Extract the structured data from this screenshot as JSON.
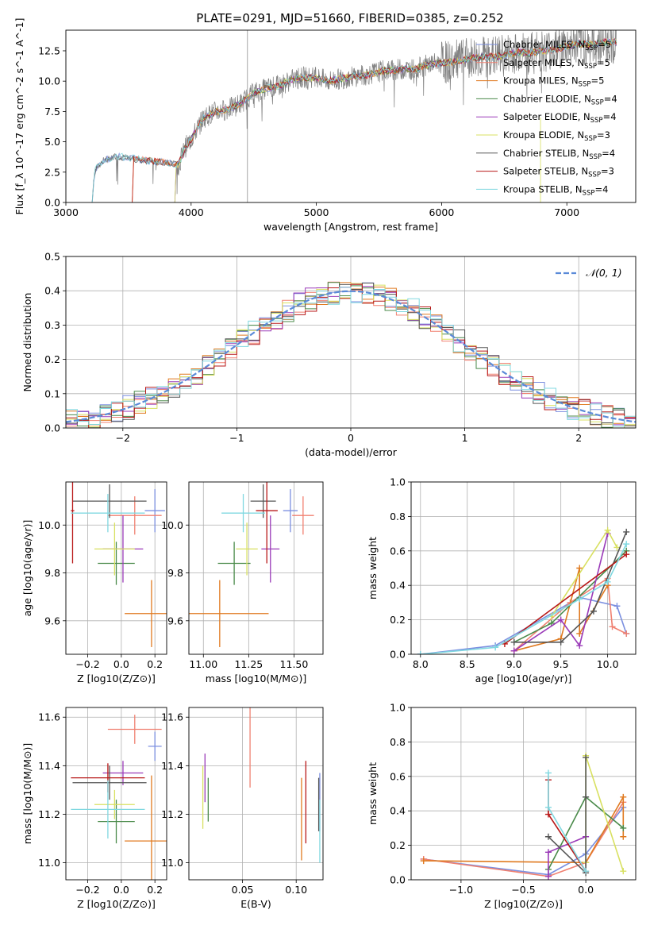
{
  "figure_title": "PLATE=0291, MJD=51660, FIBERID=0385, z=0.252",
  "series_colors": [
    "#7b8fe0",
    "#f08070",
    "#e07a20",
    "#4a8a4a",
    "#9a3ab8",
    "#d8e060",
    "#555555",
    "#b81818",
    "#80d8e0"
  ],
  "legend": [
    "Chabrier MILES, N_SSP=5",
    "Salpeter MILES, N_SSP=5",
    "Kroupa MILES, N_SSP=5",
    "Chabrier ELODIE, N_SSP=4",
    "Salpeter ELODIE, N_SSP=4",
    "Kroupa ELODIE, N_SSP=3",
    "Chabrier STELIB, N_SSP=4",
    "Salpeter STELIB, N_SSP=3",
    "Kroupa STELIB, N_SSP=4"
  ],
  "hist_legend": "𝒩(0, 1)",
  "chart_data": [
    {
      "id": "spectrum",
      "type": "line",
      "title": "PLATE=0291, MJD=51660, FIBERID=0385, z=0.252",
      "xlabel": "wavelength [Angstrom, rest frame]",
      "ylabel": "Flux [f_λ 10^-17 erg cm^-2 s^-1 A^-1]",
      "xlim": [
        3000,
        7550
      ],
      "ylim": [
        0,
        14.2
      ],
      "xticks": [
        3000,
        4000,
        5000,
        6000,
        7000
      ],
      "yticks": [
        0.0,
        2.5,
        5.0,
        7.5,
        10.0,
        12.5
      ],
      "observed_color": "#808080",
      "x": [
        3210,
        3230,
        3300,
        3400,
        3500,
        3600,
        3700,
        3800,
        3900,
        3950,
        4000,
        4100,
        4200,
        4300,
        4400,
        4500,
        4600,
        4700,
        4800,
        4900,
        5000,
        5100,
        5200,
        5300,
        5400,
        5500,
        5600,
        5700,
        5800,
        5900,
        6000,
        6100,
        6200,
        6300,
        6400,
        6500,
        6600,
        6700,
        6800,
        6900,
        7000,
        7100,
        7200,
        7300
      ],
      "y": [
        0.0,
        2.6,
        3.5,
        3.8,
        3.7,
        3.5,
        3.4,
        3.3,
        3.1,
        4.5,
        5.2,
        7.0,
        7.5,
        7.7,
        8.2,
        9.0,
        9.4,
        9.6,
        10.1,
        10.3,
        10.3,
        10.0,
        10.2,
        10.4,
        10.5,
        10.8,
        10.9,
        11.0,
        11.0,
        11.4,
        11.5,
        11.6,
        11.8,
        12.0,
        12.0,
        12.1,
        12.4,
        12.3,
        12.5,
        12.6,
        12.9,
        13.1,
        13.0,
        13.2
      ],
      "series_start": [
        3210,
        3530,
        3530,
        3870,
        3870,
        3870,
        3210,
        3530,
        3210
      ]
    },
    {
      "id": "residual_histogram",
      "type": "bar",
      "xlabel": "(data-model)/error",
      "ylabel": "Normed distribution",
      "xlim": [
        -2.5,
        2.5
      ],
      "ylim": [
        0,
        0.5
      ],
      "xticks": [
        -2,
        -1,
        0,
        1,
        2
      ],
      "yticks": [
        0.0,
        0.1,
        0.2,
        0.3,
        0.4,
        0.5
      ],
      "bin_width": 0.1,
      "reference_curve": "normal(0,1)",
      "reference_color": "#5a8ad8"
    },
    {
      "id": "age_vs_Z",
      "type": "scatter",
      "xlabel": "Z [log10(Z/Z⊙)]",
      "ylabel": "age  [log10(age/yr)]",
      "xlim": [
        -0.33,
        0.27
      ],
      "ylim": [
        9.46,
        10.18
      ],
      "xticks": [
        -0.2,
        0.0,
        0.2
      ],
      "yticks": [
        9.6,
        9.8,
        10.0
      ],
      "points": [
        {
          "x": 0.2,
          "y": 10.06,
          "xerr": 0.06,
          "yerr": 0.09,
          "color": "#7b8fe0"
        },
        {
          "x": 0.08,
          "y": 10.04,
          "xerr": 0.16,
          "yerr": 0.08,
          "color": "#f08070"
        },
        {
          "x": 0.18,
          "y": 9.63,
          "xerr": 0.16,
          "yerr": 0.14,
          "color": "#e07a20"
        },
        {
          "x": -0.03,
          "y": 9.84,
          "xerr": 0.11,
          "yerr": 0.09,
          "color": "#4a8a4a"
        },
        {
          "x": 0.01,
          "y": 9.9,
          "xerr": 0.12,
          "yerr": 0.14,
          "color": "#9a3ab8"
        },
        {
          "x": -0.04,
          "y": 9.9,
          "xerr": 0.12,
          "yerr": 0.11,
          "color": "#d8e060"
        },
        {
          "x": -0.07,
          "y": 10.1,
          "xerr": 0.22,
          "yerr": 0.07,
          "color": "#555555"
        },
        {
          "x": -0.29,
          "y": 10.06,
          "xerr": 0.01,
          "yerr": 0.22,
          "color": "#b81818"
        },
        {
          "x": -0.08,
          "y": 10.05,
          "xerr": 0.22,
          "yerr": 0.08,
          "color": "#80d8e0"
        }
      ]
    },
    {
      "id": "age_vs_mass",
      "type": "scatter",
      "xlabel": "mass [log10(M/M⊙)]",
      "ylabel": "",
      "xlim": [
        10.92,
        11.66
      ],
      "ylim": [
        9.46,
        10.18
      ],
      "xticks": [
        11.0,
        11.25,
        11.5
      ],
      "yticks": [
        9.6,
        9.8,
        10.0
      ],
      "points": [
        {
          "x": 11.48,
          "y": 10.06,
          "xerr": 0.04,
          "yerr": 0.09,
          "color": "#7b8fe0"
        },
        {
          "x": 11.55,
          "y": 10.04,
          "xerr": 0.06,
          "yerr": 0.08,
          "color": "#f08070"
        },
        {
          "x": 11.09,
          "y": 9.63,
          "xerr": 0.27,
          "yerr": 0.14,
          "color": "#e07a20"
        },
        {
          "x": 11.17,
          "y": 9.84,
          "xerr": 0.09,
          "yerr": 0.09,
          "color": "#4a8a4a"
        },
        {
          "x": 11.37,
          "y": 9.9,
          "xerr": 0.05,
          "yerr": 0.14,
          "color": "#9a3ab8"
        },
        {
          "x": 11.24,
          "y": 9.9,
          "xerr": 0.06,
          "yerr": 0.11,
          "color": "#d8e060"
        },
        {
          "x": 11.33,
          "y": 10.1,
          "xerr": 0.07,
          "yerr": 0.07,
          "color": "#555555"
        },
        {
          "x": 11.35,
          "y": 10.06,
          "xerr": 0.06,
          "yerr": 0.22,
          "color": "#b81818"
        },
        {
          "x": 11.22,
          "y": 10.05,
          "xerr": 0.12,
          "yerr": 0.08,
          "color": "#80d8e0"
        }
      ]
    },
    {
      "id": "mass_weight_vs_age",
      "type": "line",
      "xlabel": "age  [log10(age/yr)]",
      "ylabel": "mass weight",
      "xlim": [
        7.9,
        10.3
      ],
      "ylim": [
        0,
        1
      ],
      "xticks": [
        8.0,
        8.5,
        9.0,
        9.5,
        10.0
      ],
      "yticks": [
        0.0,
        0.2,
        0.4,
        0.6,
        0.8,
        1.0
      ],
      "series": [
        {
          "x": [
            8.0,
            8.8,
            9.7,
            10.1,
            10.2
          ],
          "y": [
            0.0,
            0.05,
            0.33,
            0.28,
            0.12
          ],
          "color": "#7b8fe0"
        },
        {
          "x": [
            9.0,
            9.6,
            10.0,
            10.05,
            10.2
          ],
          "y": [
            0.02,
            0.3,
            0.44,
            0.16,
            0.12
          ],
          "color": "#f08070"
        },
        {
          "x": [
            9.0,
            9.5,
            9.7,
            9.7,
            10.0
          ],
          "y": [
            0.02,
            0.09,
            0.5,
            0.12,
            0.4
          ],
          "color": "#e07a20"
        },
        {
          "x": [
            9.0,
            9.4,
            10.2
          ],
          "y": [
            0.07,
            0.18,
            0.6
          ],
          "color": "#4a8a4a"
        },
        {
          "x": [
            9.0,
            9.5,
            9.7,
            10.0
          ],
          "y": [
            0.02,
            0.2,
            0.05,
            0.7
          ],
          "color": "#9a3ab8"
        },
        {
          "x": [
            9.4,
            10.0,
            10.1
          ],
          "y": [
            0.22,
            0.72,
            0.62
          ],
          "color": "#d8e060"
        },
        {
          "x": [
            9.0,
            9.5,
            9.85,
            10.2
          ],
          "y": [
            0.07,
            0.07,
            0.25,
            0.71
          ],
          "color": "#555555"
        },
        {
          "x": [
            8.9,
            10.2
          ],
          "y": [
            0.06,
            0.58
          ],
          "color": "#b81818"
        },
        {
          "x": [
            8.0,
            8.8,
            9.7,
            10.0,
            10.2
          ],
          "y": [
            0.0,
            0.04,
            0.32,
            0.42,
            0.64
          ],
          "color": "#80d8e0"
        }
      ]
    },
    {
      "id": "mass_vs_Z",
      "type": "scatter",
      "xlabel": "Z [log10(Z/Z⊙)]",
      "ylabel": "mass [log10(M/M⊙)]",
      "xlim": [
        -0.33,
        0.27
      ],
      "ylim": [
        10.93,
        11.64
      ],
      "xticks": [
        -0.2,
        0.0,
        0.2
      ],
      "yticks": [
        11.0,
        11.2,
        11.4,
        11.6
      ],
      "points": [
        {
          "x": 0.2,
          "y": 11.48,
          "xerr": 0.04,
          "yerr": 0.06,
          "color": "#7b8fe0"
        },
        {
          "x": 0.08,
          "y": 11.55,
          "xerr": 0.16,
          "yerr": 0.06,
          "color": "#f08070"
        },
        {
          "x": 0.18,
          "y": 11.09,
          "xerr": 0.16,
          "yerr": 0.27,
          "color": "#e07a20"
        },
        {
          "x": -0.03,
          "y": 11.17,
          "xerr": 0.11,
          "yerr": 0.09,
          "color": "#4a8a4a"
        },
        {
          "x": 0.01,
          "y": 11.37,
          "xerr": 0.12,
          "yerr": 0.05,
          "color": "#9a3ab8"
        },
        {
          "x": -0.04,
          "y": 11.24,
          "xerr": 0.12,
          "yerr": 0.06,
          "color": "#d8e060"
        },
        {
          "x": -0.07,
          "y": 11.33,
          "xerr": 0.22,
          "yerr": 0.07,
          "color": "#555555"
        },
        {
          "x": -0.08,
          "y": 11.35,
          "xerr": 0.22,
          "yerr": 0.06,
          "color": "#b81818"
        },
        {
          "x": -0.08,
          "y": 11.22,
          "xerr": 0.22,
          "yerr": 0.12,
          "color": "#80d8e0"
        }
      ]
    },
    {
      "id": "mass_vs_ebv",
      "type": "scatter",
      "xlabel": "E(B-V)",
      "ylabel": "",
      "xlim": [
        0.0,
        0.125
      ],
      "ylim": [
        10.93,
        11.64
      ],
      "xticks": [
        0.05,
        0.1
      ],
      "yticks": [
        11.0,
        11.2,
        11.4,
        11.6
      ],
      "points": [
        {
          "x": 0.122,
          "y": 11.25,
          "xerr": 0,
          "yerr": 0.12,
          "color": "#7b8fe0"
        },
        {
          "x": 0.057,
          "y": 11.48,
          "xerr": 0,
          "yerr": 0.17,
          "color": "#f08070"
        },
        {
          "x": 0.105,
          "y": 11.18,
          "xerr": 0,
          "yerr": 0.17,
          "color": "#e07a20"
        },
        {
          "x": 0.018,
          "y": 11.26,
          "xerr": 0,
          "yerr": 0.09,
          "color": "#4a8a4a"
        },
        {
          "x": 0.015,
          "y": 11.35,
          "xerr": 0,
          "yerr": 0.1,
          "color": "#9a3ab8"
        },
        {
          "x": 0.013,
          "y": 11.27,
          "xerr": 0,
          "yerr": 0.13,
          "color": "#d8e060"
        },
        {
          "x": 0.121,
          "y": 11.24,
          "xerr": 0,
          "yerr": 0.11,
          "color": "#555555"
        },
        {
          "x": 0.109,
          "y": 11.25,
          "xerr": 0,
          "yerr": 0.17,
          "color": "#b81818"
        },
        {
          "x": 0.122,
          "y": 11.13,
          "xerr": 0,
          "yerr": 0.13,
          "color": "#80d8e0"
        }
      ]
    },
    {
      "id": "mass_weight_vs_Z",
      "type": "line",
      "xlabel": "Z [log10(Z/Z⊙)]",
      "ylabel": "mass weight",
      "xlim": [
        -1.4,
        0.4
      ],
      "ylim": [
        0,
        1
      ],
      "xticks": [
        -1.0,
        -0.5,
        0.0
      ],
      "yticks": [
        0.0,
        0.2,
        0.4,
        0.6,
        0.8,
        1.0
      ],
      "series": [
        {
          "x": [
            -1.3,
            -0.3,
            0.0,
            0.3
          ],
          "y": [
            0.12,
            0.03,
            0.15,
            0.42
          ],
          "color": "#7b8fe0"
        },
        {
          "x": [
            -1.3,
            -0.3,
            0.0,
            0.3
          ],
          "y": [
            0.12,
            0.02,
            0.1,
            0.45
          ],
          "color": "#f08070"
        },
        {
          "x": [
            -1.3,
            0.0,
            0.3,
            0.3
          ],
          "y": [
            0.11,
            0.1,
            0.48,
            0.25
          ],
          "color": "#e07a20"
        },
        {
          "x": [
            -0.3,
            0.0,
            0.3
          ],
          "y": [
            0.06,
            0.48,
            0.3
          ],
          "color": "#4a8a4a"
        },
        {
          "x": [
            -0.3,
            -0.3,
            0.0
          ],
          "y": [
            0.02,
            0.16,
            0.25
          ],
          "color": "#9a3ab8"
        },
        {
          "x": [
            0.0,
            0.0,
            0.3
          ],
          "y": [
            0.1,
            0.72,
            0.05
          ],
          "color": "#d8e060"
        },
        {
          "x": [
            -0.3,
            0.0,
            0.0,
            0.0
          ],
          "y": [
            0.25,
            0.04,
            0.48,
            0.71
          ],
          "color": "#555555"
        },
        {
          "x": [
            -0.3,
            -0.3,
            0.0
          ],
          "y": [
            0.58,
            0.38,
            0.05
          ],
          "color": "#b81818"
        },
        {
          "x": [
            -0.3,
            -0.3,
            0.0
          ],
          "y": [
            0.62,
            0.42,
            0.05
          ],
          "color": "#80d8e0"
        }
      ]
    }
  ]
}
